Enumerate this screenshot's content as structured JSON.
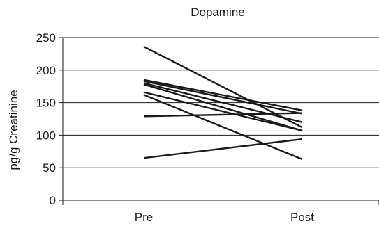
{
  "chart_data": {
    "type": "line",
    "title": "Dopamine",
    "xlabel": "",
    "ylabel": "pg/g Creatinine",
    "categories": [
      "Pre",
      "Post"
    ],
    "ylim": [
      0,
      250
    ],
    "yticks": [
      0,
      50,
      100,
      150,
      200,
      250
    ],
    "grid": true,
    "series": [
      {
        "values": [
          236,
          112
        ]
      },
      {
        "values": [
          185,
          138
        ]
      },
      {
        "values": [
          183,
          133
        ]
      },
      {
        "values": [
          180,
          120
        ]
      },
      {
        "values": [
          178,
          107
        ]
      },
      {
        "values": [
          166,
          107
        ]
      },
      {
        "values": [
          162,
          63
        ]
      },
      {
        "values": [
          129,
          134
        ]
      },
      {
        "values": [
          65,
          94
        ]
      }
    ]
  },
  "colors": {
    "line": "#1a1a1a",
    "grid": "#1a1a1a",
    "axis": "#1a1a1a"
  }
}
